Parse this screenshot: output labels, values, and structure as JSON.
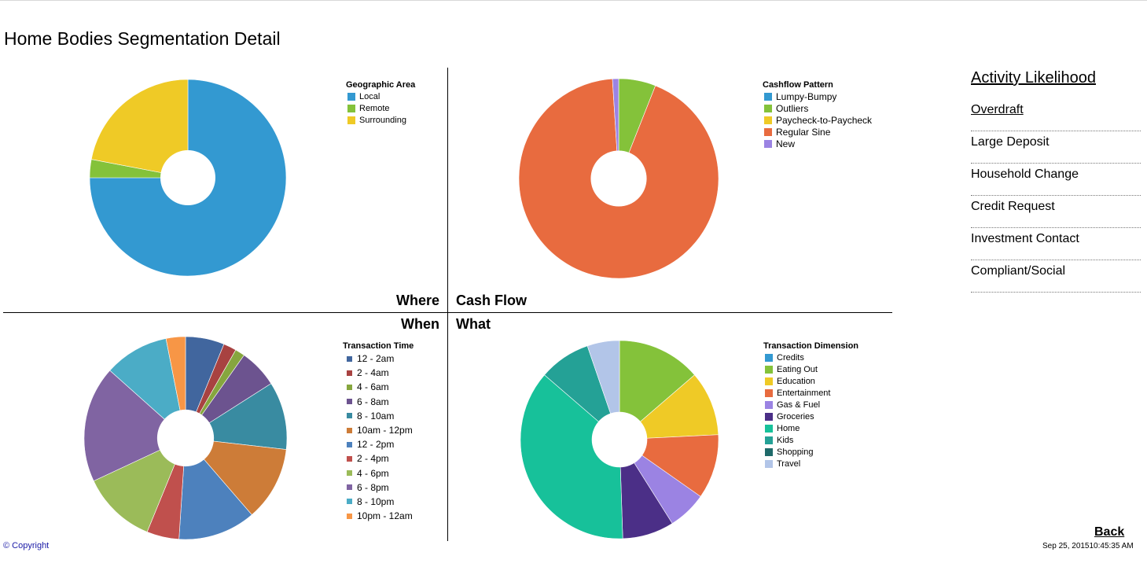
{
  "page": {
    "title": "Home Bodies Segmentation Detail"
  },
  "quadrants": {
    "where": "Where",
    "cash_flow": "Cash Flow",
    "when": "When",
    "what": "What"
  },
  "sidebar": {
    "title": "Activity Likelihood",
    "items": [
      {
        "label": "Overdraft"
      },
      {
        "label": "Large Deposit"
      },
      {
        "label": "Household Change"
      },
      {
        "label": "Credit Request"
      },
      {
        "label": "Investment Contact"
      },
      {
        "label": "Compliant/Social"
      }
    ]
  },
  "footer": {
    "copyright": "© Copyright",
    "back": "Back",
    "timestamp": "Sep 25, 201510:45:35 AM"
  },
  "chart_data": [
    {
      "type": "pie",
      "legend_title": "Geographic Area",
      "legend_position": "top-right",
      "categories": [
        "Local",
        "Remote",
        "Surrounding"
      ],
      "values": [
        75,
        3,
        22
      ],
      "colors": [
        "#3399d1",
        "#84c23a",
        "#efca26"
      ]
    },
    {
      "type": "pie",
      "legend_title": "Cashflow Pattern",
      "legend_position": "top-right",
      "categories": [
        "Lumpy-Bumpy",
        "Outliers",
        "Paycheck-to-Paycheck",
        "Regular Sine",
        "New"
      ],
      "values": [
        0,
        6,
        0,
        93,
        1
      ],
      "colors": [
        "#3399d1",
        "#84c23a",
        "#efca26",
        "#e86b3f",
        "#9b83e3"
      ]
    },
    {
      "type": "pie",
      "legend_title": "Transaction Time",
      "legend_position": "top-right",
      "categories": [
        "12 - 2am",
        "2 - 4am",
        "4 - 6am",
        "6 - 8am",
        "8 - 10am",
        "10am - 12pm",
        "12 - 2pm",
        "2 - 4pm",
        "4 - 6pm",
        "6 - 8pm",
        "8 - 10pm",
        "10pm - 12am"
      ],
      "values": [
        6,
        2,
        1.5,
        6,
        10.5,
        11.5,
        12,
        5,
        11.5,
        18,
        10,
        3
      ],
      "colors": [
        "#41669e",
        "#a84241",
        "#86a63e",
        "#6c538f",
        "#398ba1",
        "#cd7c38",
        "#4d81bd",
        "#c0504d",
        "#9bbb59",
        "#8064a2",
        "#4bacc6",
        "#f79646"
      ]
    },
    {
      "type": "pie",
      "legend_title": "Transaction Dimension",
      "legend_position": "top-right",
      "categories": [
        "Credits",
        "Eating Out",
        "Education",
        "Entertainment",
        "Gas & Fuel",
        "Groceries",
        "Home",
        "Kids",
        "Shopping",
        "Travel"
      ],
      "values": [
        0,
        13,
        10,
        10,
        6,
        8,
        35,
        8,
        0,
        5
      ],
      "colors": [
        "#3399d1",
        "#84c23a",
        "#efca26",
        "#e86b3f",
        "#9b83e3",
        "#4b2f87",
        "#17c19a",
        "#24a196",
        "#1f6a6a",
        "#b2c5e8"
      ]
    }
  ]
}
